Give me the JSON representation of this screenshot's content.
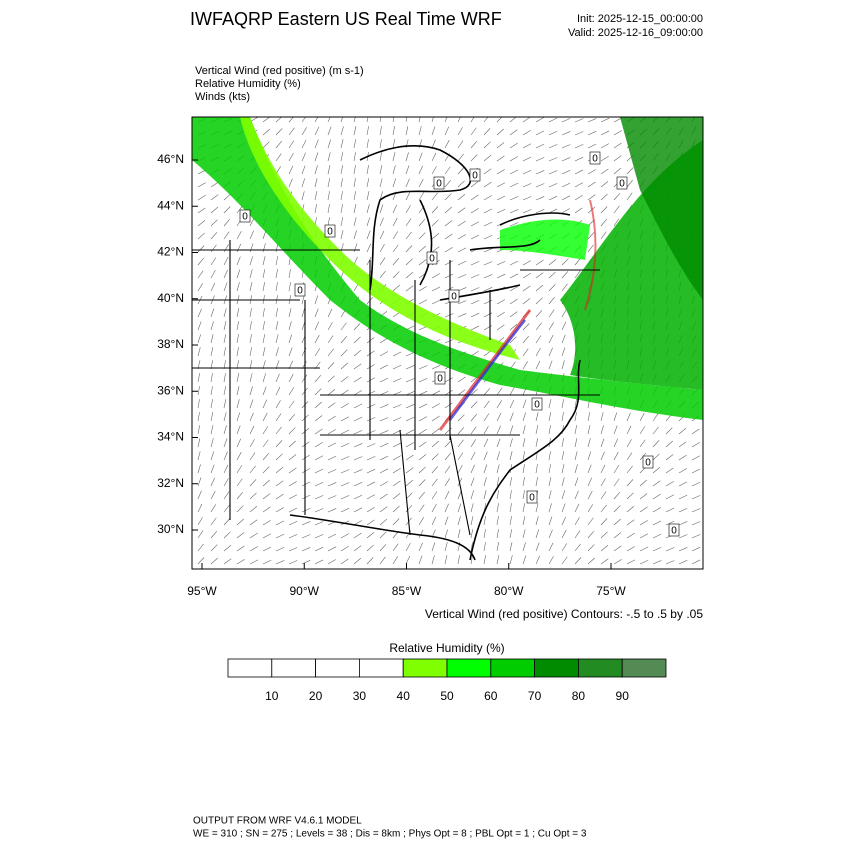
{
  "header": {
    "title": "IWFAQRP Eastern US Real Time WRF",
    "init": "Init: 2025-12-15_00:00:00",
    "valid": "Valid: 2025-12-16_09:00:00"
  },
  "fields": [
    "Vertical Wind (red positive)   (m s-1)",
    "Relative Humidity   (%)",
    "Winds   (kts)"
  ],
  "map": {
    "lat_labels": [
      "46°N",
      "44°N",
      "42°N",
      "40°N",
      "38°N",
      "36°N",
      "34°N",
      "32°N",
      "30°N"
    ],
    "lon_labels": [
      "95°W",
      "90°W",
      "85°W",
      "80°W",
      "75°W"
    ],
    "contour_labels": [
      "0",
      "0",
      "0",
      "0",
      "0",
      "0",
      "0",
      "0",
      "0",
      "0",
      "0",
      "0",
      "0",
      "0"
    ],
    "contour_note": "Vertical Wind (red positive) Contours: -.5 to .5 by .05"
  },
  "colorbar": {
    "title": "Relative Humidity  (%)",
    "levels": [
      10,
      20,
      30,
      40,
      50,
      60,
      70,
      80,
      90
    ],
    "colors": [
      "#ffffff",
      "#ffffff",
      "#ffffff",
      "#ffffff",
      "#7fff00",
      "#00ff00",
      "#00cd00",
      "#008b00",
      "#228b22",
      "#548b54"
    ]
  },
  "footer": {
    "line1": "OUTPUT FROM WRF V4.6.1 MODEL",
    "line2": "WE = 310 ; SN = 275 ; Levels = 38 ; Dis = 8km ; Phys Opt = 8 ; PBL Opt = 1 ; Cu Opt = 3"
  }
}
